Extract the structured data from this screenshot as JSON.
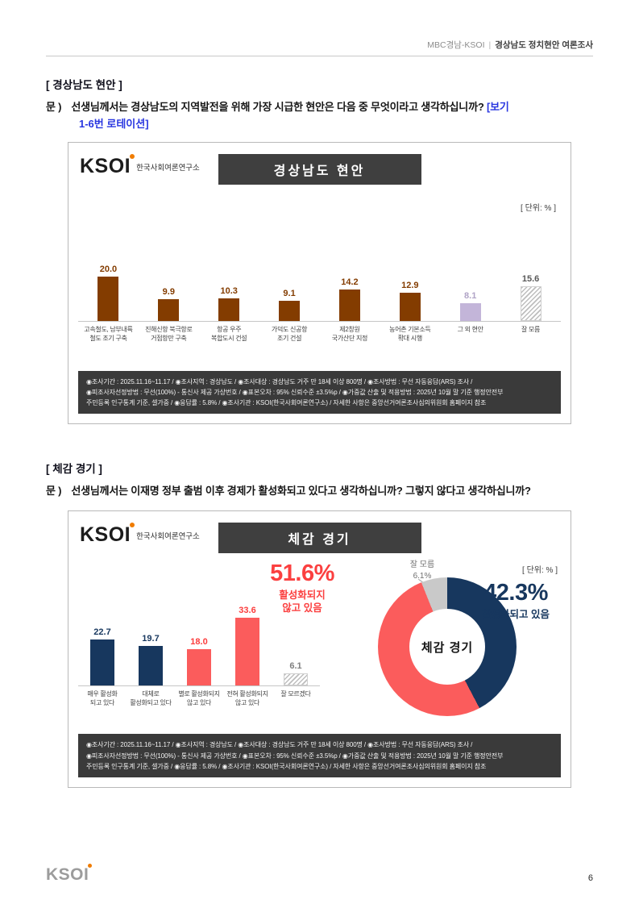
{
  "header": {
    "left": "MBC경남-KSOI",
    "sep": "|",
    "right": "경상남도 정치현안 여론조사"
  },
  "logo": {
    "text": "KSOI",
    "subtitle": "한국사회여론연구소"
  },
  "section1": {
    "heading": "[ 경상남도 현안 ]",
    "q_prefix": "문 )",
    "q_text": "선생님께서는 경상남도의 지역발전을 위해 가장 시급한 현안은 다음 중 무엇이라고 생각하십니까?",
    "q_note_line1": "[보기",
    "q_note_line2": "1-6번 로테이션]"
  },
  "section2": {
    "heading": "[ 체감 경기 ]",
    "q_prefix": "문 )",
    "q_text": "선생님께서는 이재명 정부 출범 이후 경제가 활성화되고 있다고 생각하십니까? 그렇지 않다고 생각하십니까?"
  },
  "chart1": {
    "title": "경상남도 현안",
    "unit_label": "[ 단위: % ]"
  },
  "chart2": {
    "title": "체감 경기",
    "unit_label": "[ 단위: % ]"
  },
  "donut": {
    "no_pct": "51.6%",
    "no_label_line1": "활성화되지",
    "no_label_line2": "않고 있음",
    "yes_pct": "42.3%",
    "yes_label": "활성화되고 있음",
    "dk_label": "잘 모름",
    "dk_pct": "6.1%",
    "center_label": "체감 경기"
  },
  "footnote": {
    "lines": [
      "◉조사기간 : 2025.11.16~11.17 / ◉조사지역 : 경상남도 / ◉조사대상 : 경상남도 거주 만 18세 이상 800명 / ◉조사방법 : 무선 자동응답(ARS) 조사 /",
      "◉피조사자선정방법 : 무선(100%) - 통신사 제공 가상번호 / ◉표본오차 : 95% 신뢰수준 ±3.5%p / ◉가중값 산출 및 적용방법 : 2025년 10월 말 기준 행정안전부",
      "주민등록 인구통계 기준, 셀가중 / ◉응답률 : 5.8% / ◉조사기관 : KSOI(한국사회여론연구소) / 자세한 사항은 중앙선거여론조사심의위원회 홈페이지 참조"
    ]
  },
  "page_footer": {
    "logo": "KSOI",
    "page_number": "6"
  },
  "chart_data": [
    {
      "type": "bar",
      "title": "경상남도 현안",
      "unit": "%",
      "categories": [
        [
          "고속철도, 남부내륙",
          "철도 조기 구축"
        ],
        [
          "진해신항 북극항로",
          "거점항만 구축"
        ],
        [
          "항공 우주",
          "복합도시 건설"
        ],
        [
          "가덕도 신공항",
          "조기 건설"
        ],
        [
          "제2창원",
          "국가산단 지정"
        ],
        [
          "농어촌 기본소득",
          "확대 시행"
        ],
        [
          "그 외 현안"
        ],
        [
          "잘 모름"
        ]
      ],
      "values": [
        20.0,
        9.9,
        10.3,
        9.1,
        14.2,
        12.9,
        8.1,
        15.6
      ],
      "colors": [
        "#833c00",
        "#833c00",
        "#833c00",
        "#833c00",
        "#833c00",
        "#833c00",
        "#c3b5d9",
        "hatch"
      ],
      "label_colors": [
        "#833c00",
        "#833c00",
        "#833c00",
        "#833c00",
        "#833c00",
        "#833c00",
        "#b0a3c6",
        "#595959"
      ],
      "ylim": [
        0,
        24
      ],
      "grid": false,
      "legend": "none"
    },
    {
      "type": "bar",
      "title": "체감 경기",
      "unit": "%",
      "categories": [
        [
          "매우 활성화",
          "되고 있다"
        ],
        [
          "대체로",
          "활성화되고 있다"
        ],
        [
          "별로 활성화되지",
          "않고 있다"
        ],
        [
          "전혀 활성화되지",
          "않고 있다"
        ],
        [
          "잘 모르겠다"
        ]
      ],
      "values": [
        22.7,
        19.7,
        18.0,
        33.6,
        6.1
      ],
      "colors": [
        "#17375e",
        "#17375e",
        "#fb5c5c",
        "#fb5c5c",
        "hatch"
      ],
      "label_colors": [
        "#17375e",
        "#17375e",
        "#fb3c3c",
        "#fb3c3c",
        "#7f7f7f"
      ],
      "ylim": [
        0,
        38
      ],
      "grid": false,
      "legend": "none"
    },
    {
      "type": "pie",
      "title": "체감 경기",
      "center_label": "체감 경기",
      "slices": [
        {
          "label": "활성화되고 있음",
          "value": 42.3,
          "color": "#17375e"
        },
        {
          "label": "활성화되지 않고 있음",
          "value": 51.6,
          "color": "#fb5c5c"
        },
        {
          "label": "잘 모름",
          "value": 6.1,
          "color": "#c9c9c9"
        }
      ]
    }
  ]
}
